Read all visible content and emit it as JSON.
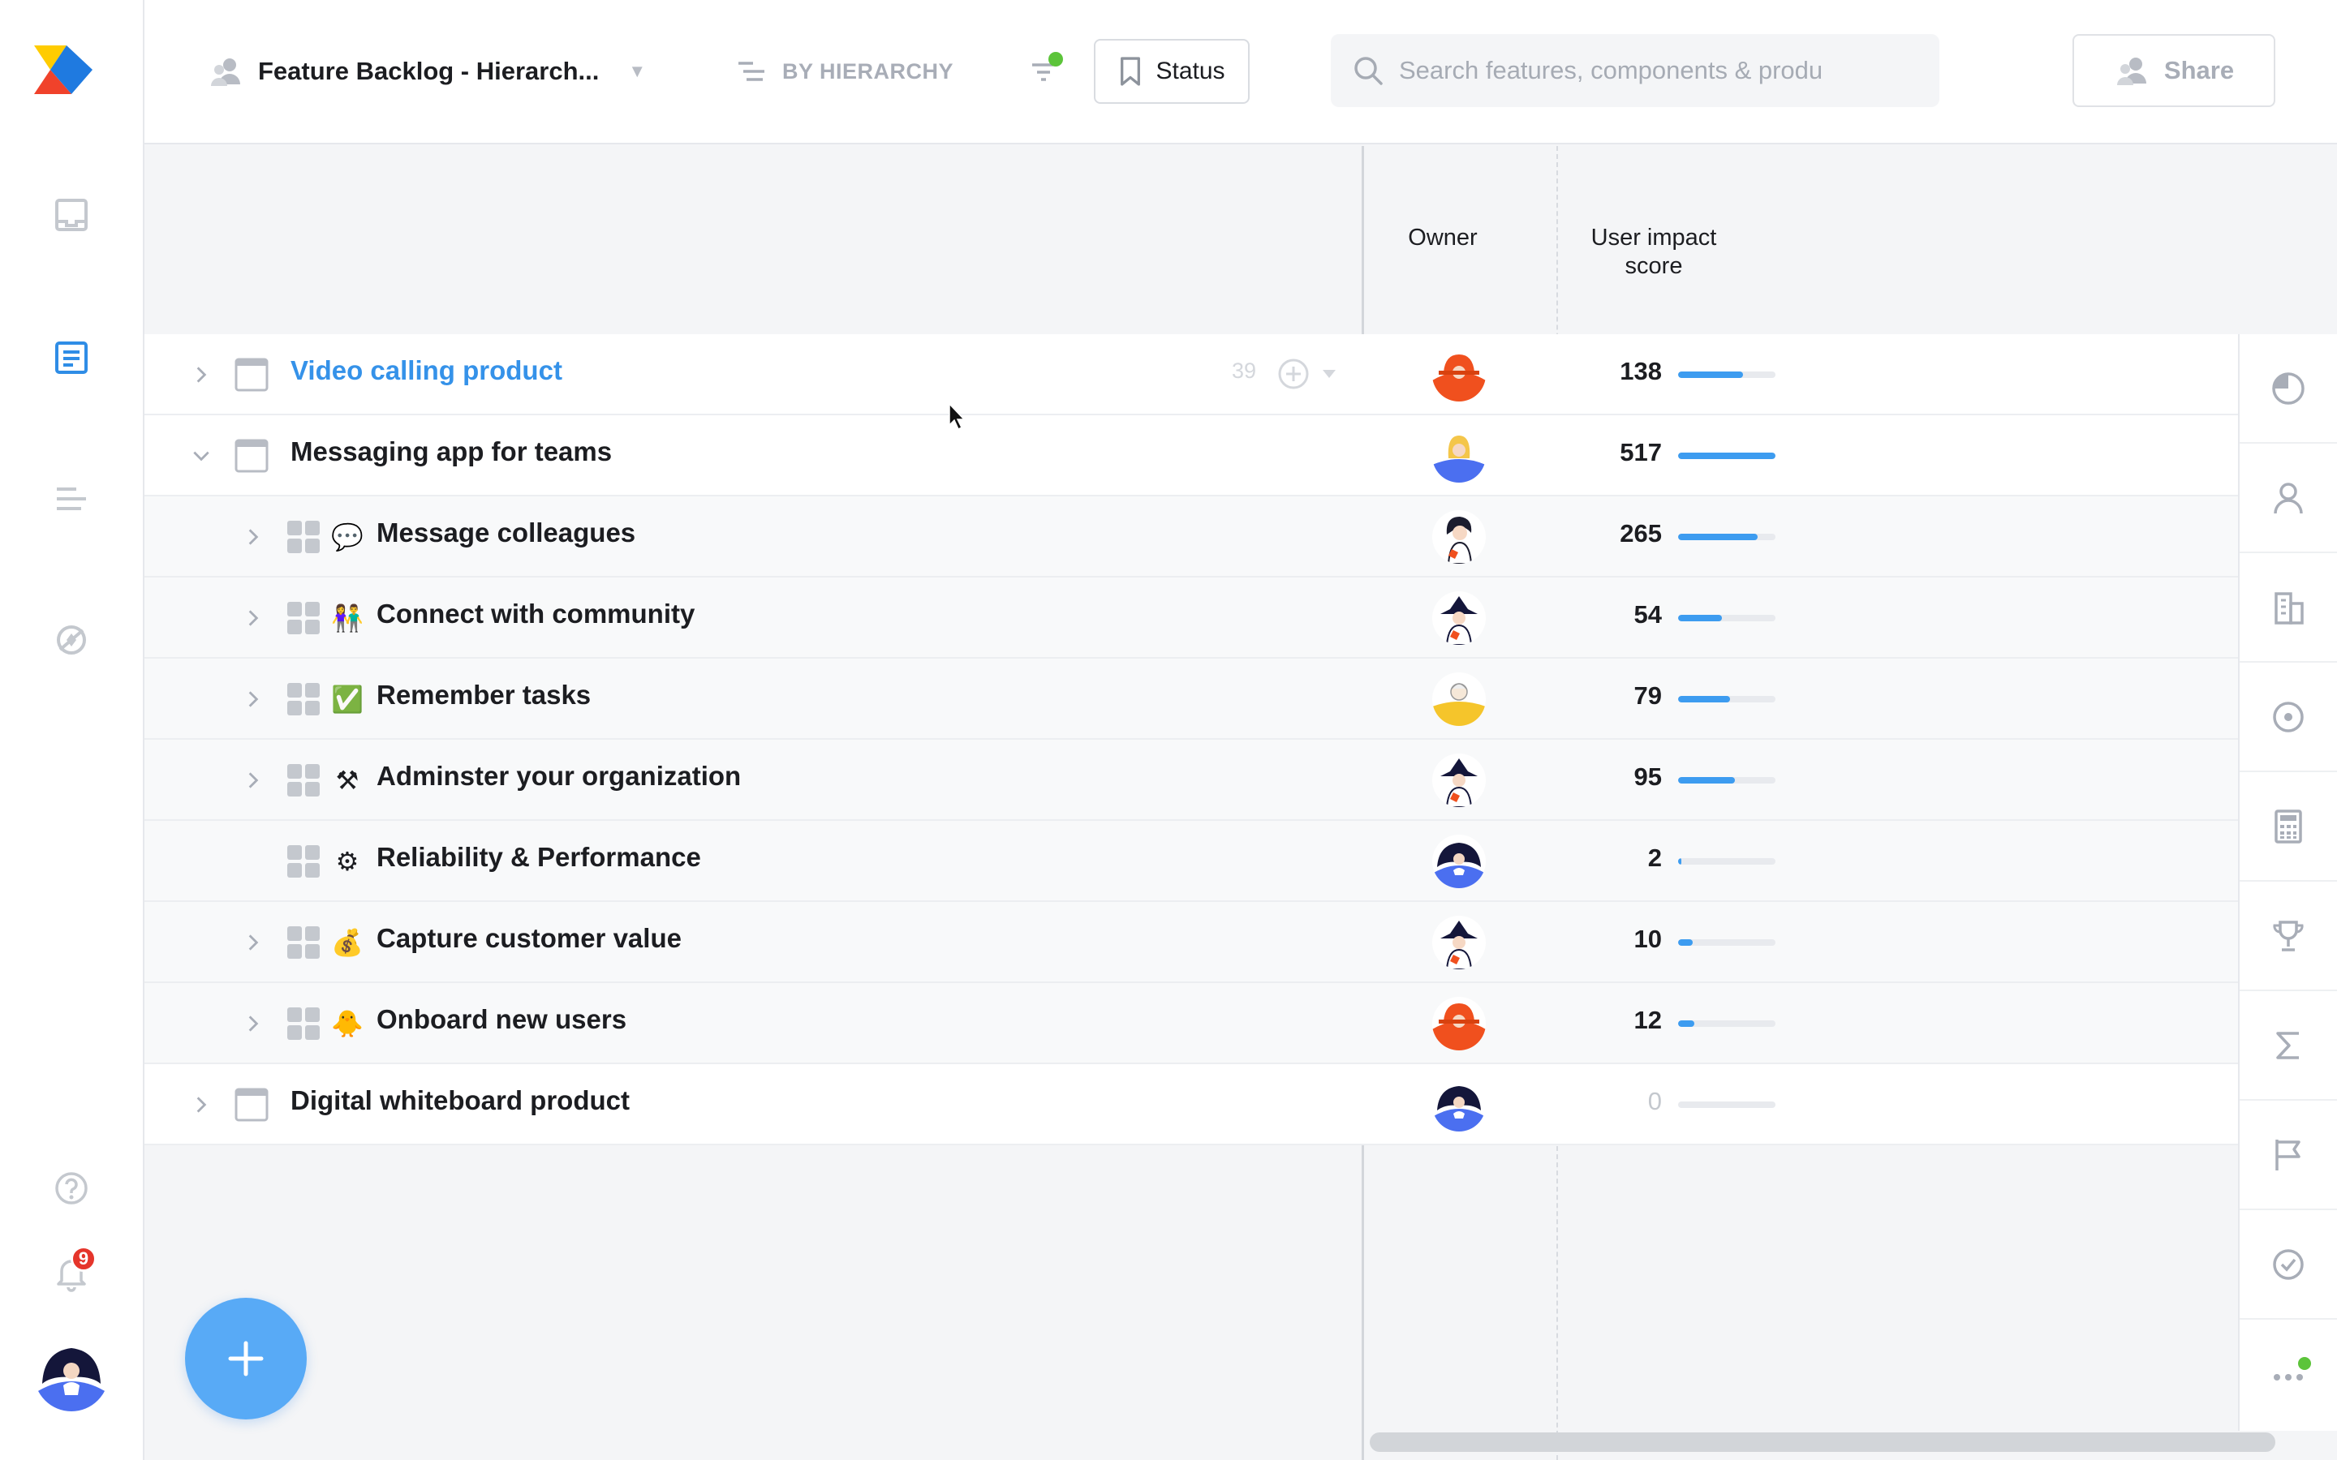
{
  "header": {
    "board_title": "Feature Backlog - Hierarch...",
    "grouping_label": "BY HIERARCHY",
    "status_label": "Status",
    "search_placeholder": "Search features, components & produ",
    "share_label": "Share"
  },
  "columns": {
    "owner": "Owner",
    "impact_line1": "User impact",
    "impact_line2": "score"
  },
  "notifications": {
    "count": "9"
  },
  "rows": [
    {
      "label": "Video calling product",
      "level": 0,
      "expanded": false,
      "emoji": "",
      "owner": "orange",
      "score": "138",
      "score_fraction": 0.67,
      "highlight": true,
      "count": "39"
    },
    {
      "label": "Messaging app for teams",
      "level": 0,
      "expanded": true,
      "emoji": "",
      "owner": "blonde",
      "score": "517",
      "score_fraction": 1.0
    },
    {
      "label": "Message colleagues",
      "level": 1,
      "emoji": "💬",
      "owner": "woman",
      "score": "265",
      "score_fraction": 0.82
    },
    {
      "label": "Connect with community",
      "level": 1,
      "emoji": "👫",
      "owner": "hat",
      "score": "54",
      "score_fraction": 0.45
    },
    {
      "label": "Remember tasks",
      "level": 1,
      "emoji": "✅",
      "owner": "yellow",
      "score": "79",
      "score_fraction": 0.53
    },
    {
      "label": "Adminster your organization",
      "level": 1,
      "emoji": "⚒",
      "owner": "hat",
      "score": "95",
      "score_fraction": 0.58
    },
    {
      "label": "Reliability & Performance",
      "level": 1,
      "emoji": "⚙",
      "owner": "navy",
      "score": "2",
      "score_fraction": 0.03,
      "no_chevron": true
    },
    {
      "label": "Capture customer value",
      "level": 1,
      "emoji": "💰",
      "owner": "hat",
      "score": "10",
      "score_fraction": 0.15
    },
    {
      "label": "Onboard new users",
      "level": 1,
      "emoji": "🐥",
      "owner": "orange",
      "score": "12",
      "score_fraction": 0.17
    },
    {
      "label": "Digital whiteboard product",
      "level": 0,
      "expanded": false,
      "emoji": "",
      "owner": "navy",
      "score": "0",
      "score_fraction": 0
    }
  ],
  "colors": {
    "accent": "#3592e9",
    "bar": "#3d9cf0",
    "fab": "#58aaf6",
    "badge": "#e5352b",
    "online": "#5cc43a"
  }
}
